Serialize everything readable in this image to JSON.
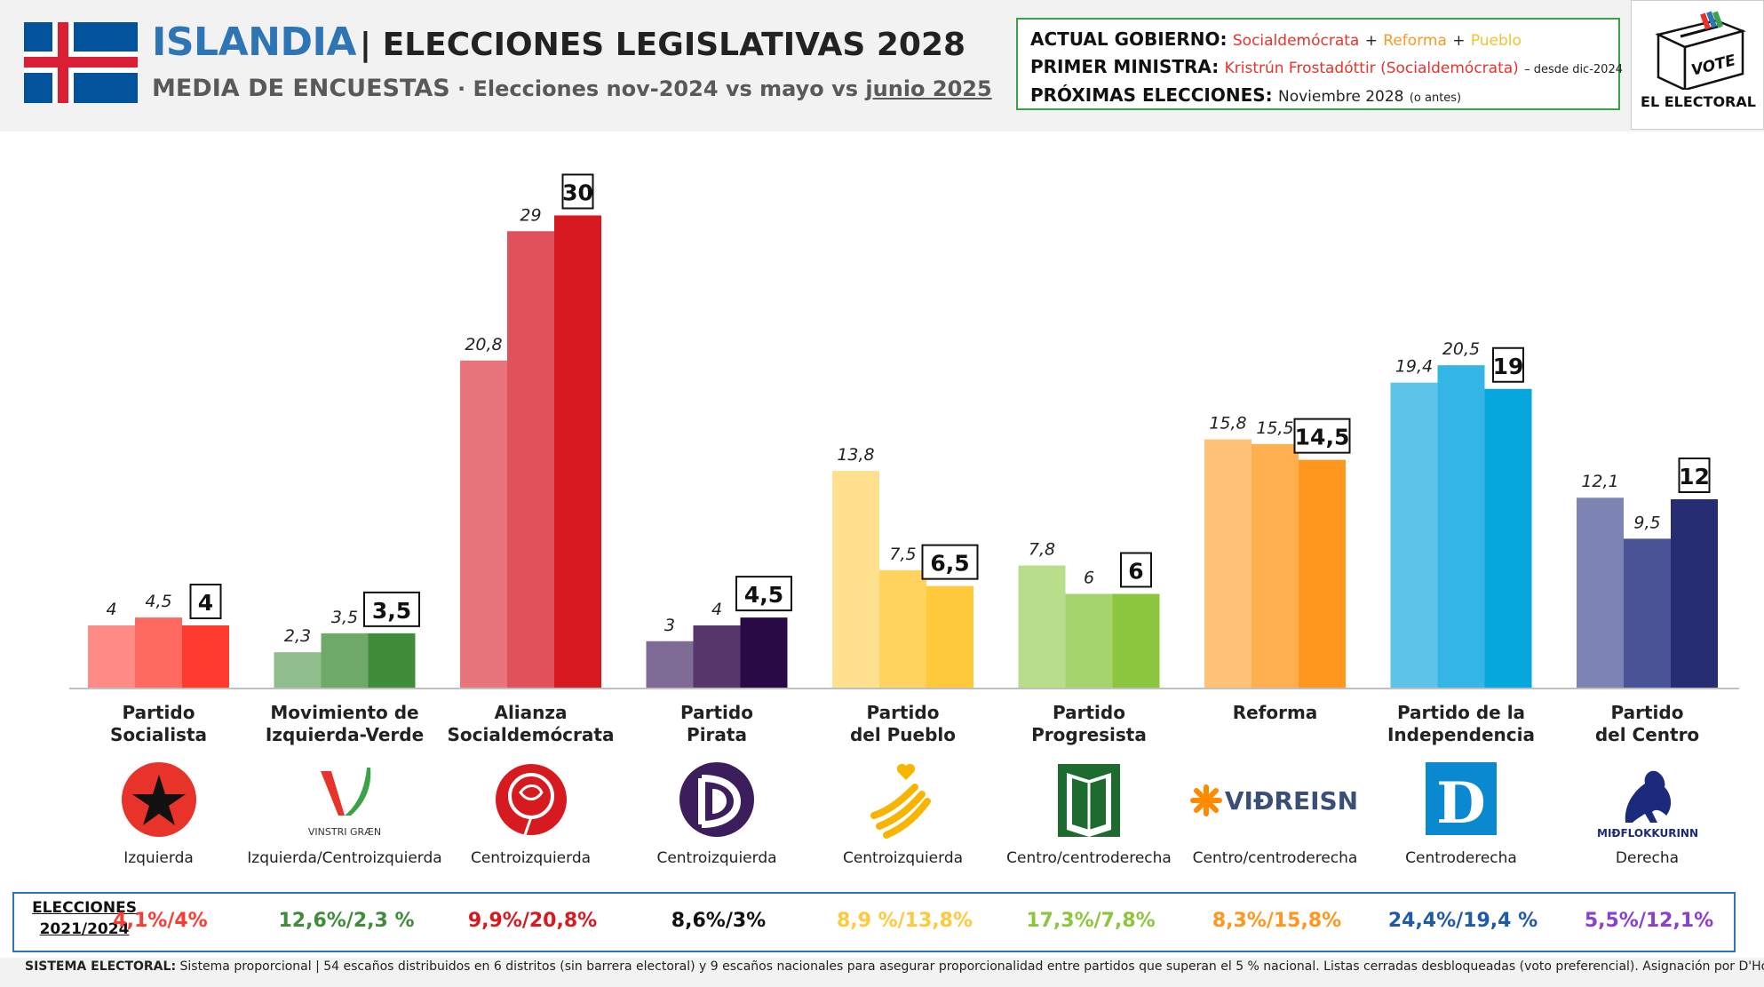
{
  "header": {
    "country": "ISLANDIA",
    "title_rest": "| ELECCIONES LEGISLATIVAS 2028",
    "subtitle_main": "MEDIA DE ENCUESTAS",
    "subtitle_sep": " · ",
    "subtitle_detail": "Elecciones nov-2024 vs mayo vs ",
    "subtitle_detail_underlined": "junio 2025"
  },
  "government": {
    "current_label": "ACTUAL GOBIERNO:",
    "parties": [
      "Socialdemócrata",
      "Reforma",
      "Pueblo"
    ],
    "plus": "+",
    "pm_label": "PRIMER MINISTRA:",
    "pm_name": "Kristrún Frostadóttir (Socialdemócrata)",
    "pm_since": "– desde dic-2024",
    "next_label": "PRÓXIMAS ELECCIONES:",
    "next_value": "Noviembre 2028",
    "next_note": "(o antes)"
  },
  "brand": {
    "vote_text": "VOTE",
    "name": "EL ELECTORAL"
  },
  "chart_data": {
    "type": "bar",
    "title": "",
    "ylim": [
      0,
      32
    ],
    "series_names": [],
    "categories": [
      "Partido Socialista",
      "Movimiento de Izquierda-Verde",
      "Alianza Socialdemócrata",
      "Partido Pirata",
      "Partido del Pueblo",
      "Partido Progresista",
      "Reforma",
      "Partido de la Independencia",
      "Partido del Centro"
    ],
    "series": [
      {
        "values": [
          4,
          2.3,
          20.8,
          3,
          13.8,
          7.8,
          15.8,
          19.4,
          12.1
        ]
      },
      {
        "values": [
          4.5,
          3.5,
          29,
          4,
          7.5,
          6,
          15.5,
          20.5,
          9.5
        ]
      },
      {
        "values": [
          4,
          3.5,
          30,
          4.5,
          6.5,
          6,
          14.5,
          19,
          12
        ]
      }
    ],
    "value_labels": [
      [
        "4",
        "4,5",
        "4"
      ],
      [
        "2,3",
        "3,5",
        "3,5"
      ],
      [
        "20,8",
        "29",
        "30"
      ],
      [
        "3",
        "4",
        "4,5"
      ],
      [
        "13,8",
        "7,5",
        "6,5"
      ],
      [
        "7,8",
        "6",
        "6"
      ],
      [
        "15,8",
        "15,5",
        "14,5"
      ],
      [
        "19,4",
        "20,5",
        "19"
      ],
      [
        "12,1",
        "9,5",
        "12"
      ]
    ],
    "colors": [
      [
        "#ff8b86",
        "#ff6a60",
        "#ff3b30"
      ],
      [
        "#8fbe8c",
        "#6ea96a",
        "#3f8c3b"
      ],
      [
        "#e8757c",
        "#e0525b",
        "#d71920"
      ],
      [
        "#7e6b96",
        "#56366b",
        "#2a0a44"
      ],
      [
        "#ffe08e",
        "#ffd35e",
        "#ffc93c"
      ],
      [
        "#b9de8b",
        "#a5d46c",
        "#8cc63f"
      ],
      [
        "#ffc276",
        "#ffaf4e",
        "#ff961e"
      ],
      [
        "#5ec3e8",
        "#33b5e5",
        "#06a7dd"
      ],
      [
        "#7c84b4",
        "#4b5397",
        "#272d72"
      ]
    ]
  },
  "parties": [
    {
      "name_line1": "Partido",
      "name_line2": "Socialista",
      "ideology": "Izquierda",
      "emblem": "socialist-star-icon",
      "result": "4,1%/4%",
      "result_color": "#ff3b30"
    },
    {
      "name_line1": "Movimiento de",
      "name_line2": "Izquierda-Verde",
      "ideology": "Izquierda/Centroizquierda",
      "emblem": "vinstri-graen-logo",
      "emblem_text": "VINSTRI GRÆN",
      "result": "12,6%/2,3 %",
      "result_color": "#3f8c3b"
    },
    {
      "name_line1": "Alianza",
      "name_line2": "Socialdemócrata",
      "ideology": "Centroizquierda",
      "emblem": "rose-icon",
      "result": "9,9%/20,8%",
      "result_color": "#d71920"
    },
    {
      "name_line1": "Partido",
      "name_line2": "Pirata",
      "ideology": "Centroizquierda",
      "emblem": "pirate-flag-icon",
      "result": "8,6%/3%",
      "result_color": "#111111"
    },
    {
      "name_line1": "Partido",
      "name_line2": "del Pueblo",
      "ideology": "Centroizquierda",
      "emblem": "hand-heart-icon",
      "result": "8,9 %/13,8%",
      "result_color": "#ffc93c"
    },
    {
      "name_line1": "Partido",
      "name_line2": "Progresista",
      "ideology": "Centro/centroderecha",
      "emblem": "book-icon",
      "result": "17,3%/7,8%",
      "result_color": "#8cc63f"
    },
    {
      "name_line1": "Reforma",
      "name_line2": "",
      "ideology": "Centro/centroderecha",
      "emblem": "vidreisn-logo",
      "emblem_text": "VIÐREISN",
      "result": "8,3%/15,8%",
      "result_color": "#ff961e"
    },
    {
      "name_line1": "Partido de la",
      "name_line2": "Independencia",
      "ideology": "Centroderecha",
      "emblem": "letter-d-icon",
      "emblem_text": "D",
      "result": "24,4%/19,4 %",
      "result_color": "#1f5aa6"
    },
    {
      "name_line1": "Partido",
      "name_line2": "del Centro",
      "ideology": "Derecha",
      "emblem": "horse-icon",
      "emblem_text": "MIÐFLOKKURINN",
      "result": "5,5%/12,1%",
      "result_color": "#8a3fcf"
    }
  ],
  "results": {
    "label_line1": "ELECCIONES",
    "label_line2": "2021/2024"
  },
  "footnote": {
    "label": "SISTEMA ELECTORAL:",
    "text": " Sistema proporcional | 54 escaños distribuidos en 6 distritos (sin barrera electoral) y 9 escaños nacionales para asegurar proporcionalidad entre partidos que superan el 5 % nacional. Listas cerradas desbloqueadas (voto preferencial). Asignación por D'Hondt."
  }
}
